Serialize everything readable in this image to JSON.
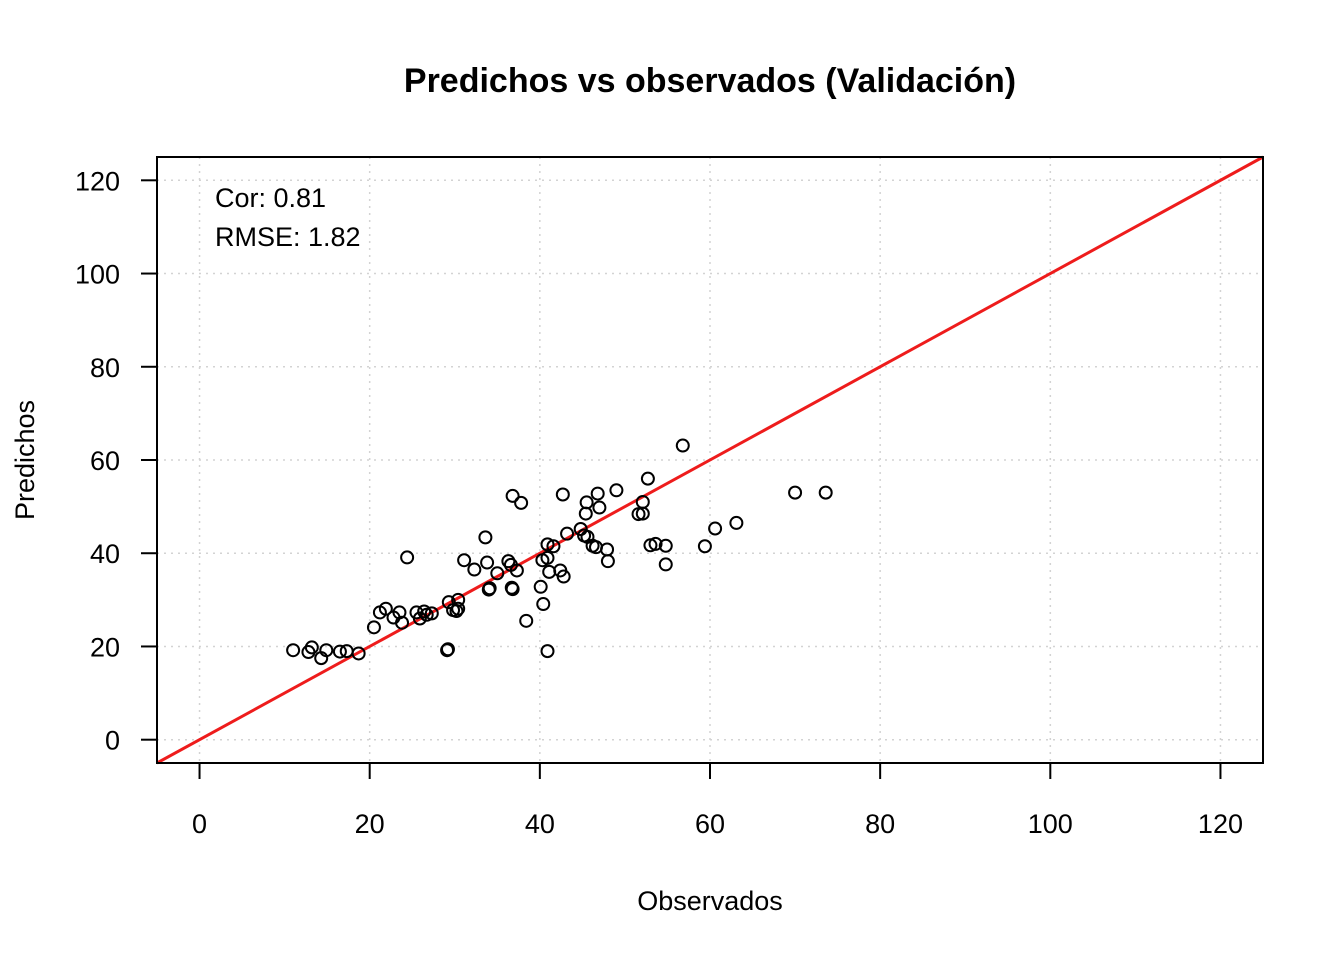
{
  "chart_data": {
    "type": "scatter",
    "title": "Predichos vs observados (Validación)",
    "xlabel": "Observados",
    "ylabel": "Predichos",
    "xlim": [
      -5,
      125
    ],
    "ylim": [
      -5,
      125
    ],
    "xticks": [
      "0",
      "20",
      "40",
      "60",
      "80",
      "100",
      "120"
    ],
    "yticks": [
      "0",
      "20",
      "40",
      "60",
      "80",
      "100",
      "120"
    ],
    "grid": true,
    "annotations": [
      "Cor: 0.81",
      "RMSE: 1.82"
    ],
    "reference_line": {
      "intercept": 0,
      "slope": 1,
      "color": "#ee1c1c"
    },
    "points": [
      [
        11.0,
        19.2
      ],
      [
        12.8,
        18.8
      ],
      [
        13.2,
        19.8
      ],
      [
        14.3,
        17.5
      ],
      [
        14.9,
        19.2
      ],
      [
        16.5,
        18.9
      ],
      [
        17.3,
        19.0
      ],
      [
        18.7,
        18.5
      ],
      [
        20.5,
        24.1
      ],
      [
        21.2,
        27.3
      ],
      [
        21.9,
        28.1
      ],
      [
        22.8,
        26.2
      ],
      [
        23.5,
        27.3
      ],
      [
        23.8,
        25.1
      ],
      [
        24.4,
        39.1
      ],
      [
        25.5,
        27.3
      ],
      [
        25.9,
        26.0
      ],
      [
        26.4,
        27.5
      ],
      [
        26.7,
        26.8
      ],
      [
        27.3,
        27.1
      ],
      [
        29.1,
        19.2
      ],
      [
        29.2,
        19.4
      ],
      [
        29.3,
        29.5
      ],
      [
        29.8,
        27.8
      ],
      [
        30.2,
        27.6
      ],
      [
        30.4,
        28.1
      ],
      [
        30.4,
        30.0
      ],
      [
        31.1,
        38.5
      ],
      [
        32.3,
        36.5
      ],
      [
        33.6,
        43.4
      ],
      [
        33.8,
        38.0
      ],
      [
        34.0,
        32.2
      ],
      [
        34.1,
        32.5
      ],
      [
        35.0,
        35.7
      ],
      [
        36.3,
        38.3
      ],
      [
        36.6,
        37.5
      ],
      [
        36.7,
        32.6
      ],
      [
        36.8,
        32.3
      ],
      [
        36.8,
        52.3
      ],
      [
        37.3,
        36.3
      ],
      [
        37.8,
        50.8
      ],
      [
        38.4,
        25.5
      ],
      [
        40.1,
        32.8
      ],
      [
        40.3,
        38.5
      ],
      [
        40.4,
        29.1
      ],
      [
        40.9,
        19.0
      ],
      [
        40.9,
        41.9
      ],
      [
        40.9,
        39.0
      ],
      [
        41.1,
        36.0
      ],
      [
        41.6,
        41.5
      ],
      [
        42.4,
        36.3
      ],
      [
        42.7,
        52.6
      ],
      [
        42.8,
        35.0
      ],
      [
        43.2,
        44.2
      ],
      [
        44.8,
        45.2
      ],
      [
        45.2,
        43.8
      ],
      [
        45.4,
        48.5
      ],
      [
        45.5,
        50.9
      ],
      [
        45.6,
        43.5
      ],
      [
        46.2,
        41.6
      ],
      [
        46.6,
        41.3
      ],
      [
        46.8,
        52.8
      ],
      [
        47.0,
        49.8
      ],
      [
        47.9,
        40.8
      ],
      [
        48.0,
        38.3
      ],
      [
        49.0,
        53.5
      ],
      [
        51.6,
        48.4
      ],
      [
        52.1,
        48.5
      ],
      [
        52.1,
        51.0
      ],
      [
        52.7,
        56.0
      ],
      [
        53.0,
        41.7
      ],
      [
        53.6,
        42.0
      ],
      [
        54.8,
        41.6
      ],
      [
        54.8,
        37.6
      ],
      [
        56.8,
        63.1
      ],
      [
        59.4,
        41.5
      ],
      [
        60.6,
        45.3
      ],
      [
        63.1,
        46.5
      ],
      [
        70.0,
        53.0
      ],
      [
        73.6,
        53.0
      ]
    ]
  }
}
